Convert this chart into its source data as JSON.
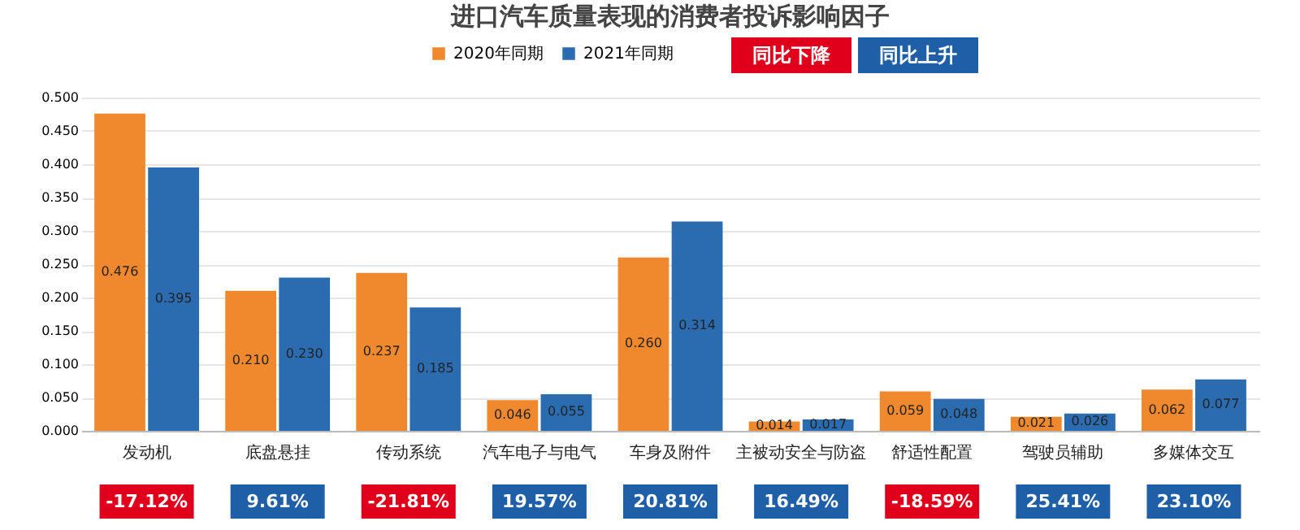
{
  "chart_data": {
    "type": "bar",
    "title": "进口汽车质量表现的消费者投诉影响因子",
    "categories": [
      "发动机",
      "底盘悬挂",
      "传动系统",
      "汽车电子与电气",
      "车身及附件",
      "主被动安全与防盗",
      "舒适性配置",
      "驾驶员辅助",
      "多媒体交互"
    ],
    "series": [
      {
        "name": "2020年同期",
        "color": "#f0892e",
        "values": [
          0.476,
          0.21,
          0.237,
          0.046,
          0.26,
          0.014,
          0.059,
          0.021,
          0.062
        ],
        "value_labels": [
          "0.476",
          "0.210",
          "0.237",
          "0.046",
          "0.260",
          "0.014",
          "0.059",
          "0.021",
          "0.062"
        ]
      },
      {
        "name": "2021年同期",
        "color": "#2b6cb0",
        "values": [
          0.395,
          0.23,
          0.185,
          0.055,
          0.314,
          0.017,
          0.048,
          0.026,
          0.077
        ],
        "value_labels": [
          "0.395",
          "0.230",
          "0.185",
          "0.055",
          "0.314",
          "0.017",
          "0.048",
          "0.026",
          "0.077"
        ]
      }
    ],
    "ylim": [
      0,
      0.5
    ],
    "yticks": [
      {
        "value": 0,
        "label": "0.000"
      },
      {
        "value": 0.05,
        "label": "0.050"
      },
      {
        "value": 0.1,
        "label": "0.100"
      },
      {
        "value": 0.15,
        "label": "0.150"
      },
      {
        "value": 0.2,
        "label": "0.200"
      },
      {
        "value": 0.25,
        "label": "0.250"
      },
      {
        "value": 0.3,
        "label": "0.300"
      },
      {
        "value": 0.35,
        "label": "0.350"
      },
      {
        "value": 0.4,
        "label": "0.400"
      },
      {
        "value": 0.45,
        "label": "0.450"
      },
      {
        "value": 0.5,
        "label": "0.500"
      }
    ],
    "grid": "y",
    "legend": "top",
    "annotations": [
      "同比下降",
      "同比上升",
      "-17.12%",
      "9.61%",
      "-21.81%",
      "19.57%",
      "20.81%",
      "16.49%",
      "-18.59%",
      "25.41%",
      "23.10%"
    ]
  }
}
